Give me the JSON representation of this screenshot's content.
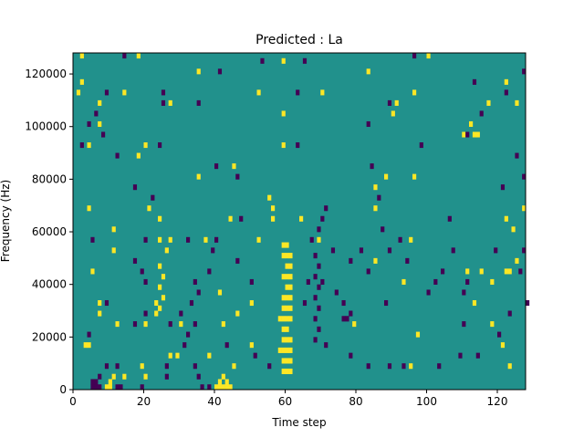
{
  "chart_data": {
    "type": "heatmap",
    "title": "Predicted : La",
    "xlabel": "Time step",
    "ylabel": "Frequency (Hz)",
    "xlim": [
      0,
      128
    ],
    "ylim": [
      0,
      128000
    ],
    "x_ticks": [
      0,
      20,
      40,
      60,
      80,
      100,
      120
    ],
    "y_ticks": [
      0,
      20000,
      40000,
      60000,
      80000,
      100000,
      120000
    ],
    "y_tick_labels": [
      "0",
      "20000",
      "40000",
      "60000",
      "80000",
      "100000",
      "120000"
    ],
    "grid": false,
    "legend": "none",
    "bin_height_hz": 2000,
    "value_levels": [
      -1,
      0,
      1
    ],
    "colors": {
      "-1": "#440154",
      "0": "#21918c",
      "1": "#fde725"
    },
    "background_value": 0,
    "cells": [
      {
        "t": 5,
        "f": 0,
        "v": -1
      },
      {
        "t": 6,
        "f": 0,
        "v": -1
      },
      {
        "t": 7,
        "f": 0,
        "v": -1
      },
      {
        "t": 9,
        "f": 0,
        "v": 1
      },
      {
        "t": 10,
        "f": 0,
        "v": 1
      },
      {
        "t": 12,
        "f": 0,
        "v": -1
      },
      {
        "t": 13,
        "f": 0,
        "v": -1
      },
      {
        "t": 19,
        "f": 0,
        "v": -1
      },
      {
        "t": 36,
        "f": 0,
        "v": -1
      },
      {
        "t": 38,
        "f": 0,
        "v": -1
      },
      {
        "t": 40,
        "f": 0,
        "v": 1
      },
      {
        "t": 41,
        "f": 0,
        "v": 1
      },
      {
        "t": 42,
        "f": 0,
        "v": 1
      },
      {
        "t": 43,
        "f": 0,
        "v": 1
      },
      {
        "t": 44,
        "f": 0,
        "v": 1
      },
      {
        "t": 5,
        "f": 2000,
        "v": -1
      },
      {
        "t": 6,
        "f": 2000,
        "v": -1
      },
      {
        "t": 10,
        "f": 2000,
        "v": 1
      },
      {
        "t": 41,
        "f": 2000,
        "v": 1
      },
      {
        "t": 43,
        "f": 2000,
        "v": 1
      },
      {
        "t": 7,
        "f": 4000,
        "v": -1
      },
      {
        "t": 11,
        "f": 4000,
        "v": 1
      },
      {
        "t": 14,
        "f": 4000,
        "v": 1
      },
      {
        "t": 20,
        "f": 4000,
        "v": 1
      },
      {
        "t": 26,
        "f": 4000,
        "v": -1
      },
      {
        "t": 35,
        "f": 4000,
        "v": -1
      },
      {
        "t": 42,
        "f": 4000,
        "v": 1
      },
      {
        "t": 9,
        "f": 8000,
        "v": -1
      },
      {
        "t": 12,
        "f": 8000,
        "v": -1
      },
      {
        "t": 19,
        "f": 8000,
        "v": 1
      },
      {
        "t": 26,
        "f": 8000,
        "v": -1
      },
      {
        "t": 34,
        "f": 8000,
        "v": -1
      },
      {
        "t": 45,
        "f": 8000,
        "v": 1
      },
      {
        "t": 55,
        "f": 8000,
        "v": -1
      },
      {
        "t": 83,
        "f": 8000,
        "v": -1
      },
      {
        "t": 89,
        "f": 8000,
        "v": -1
      },
      {
        "t": 93,
        "f": 8000,
        "v": -1
      },
      {
        "t": 95,
        "f": 8000,
        "v": 1
      },
      {
        "t": 103,
        "f": 8000,
        "v": -1
      },
      {
        "t": 123,
        "f": 8000,
        "v": 1
      },
      {
        "t": 27,
        "f": 12000,
        "v": 1
      },
      {
        "t": 29,
        "f": 12000,
        "v": 1
      },
      {
        "t": 38,
        "f": 12000,
        "v": 1
      },
      {
        "t": 51,
        "f": 12000,
        "v": -1
      },
      {
        "t": 78,
        "f": 12000,
        "v": -1
      },
      {
        "t": 109,
        "f": 12000,
        "v": -1
      },
      {
        "t": 114,
        "f": 12000,
        "v": -1
      },
      {
        "t": 3,
        "f": 16000,
        "v": 1
      },
      {
        "t": 4,
        "f": 16000,
        "v": 1
      },
      {
        "t": 31,
        "f": 16000,
        "v": -1
      },
      {
        "t": 43,
        "f": 16000,
        "v": -1
      },
      {
        "t": 50,
        "f": 16000,
        "v": 1
      },
      {
        "t": 71,
        "f": 16000,
        "v": -1
      },
      {
        "t": 121,
        "f": 16000,
        "v": 1
      },
      {
        "t": 4,
        "f": 20000,
        "v": -1
      },
      {
        "t": 32,
        "f": 20000,
        "v": -1
      },
      {
        "t": 97,
        "f": 20000,
        "v": 1
      },
      {
        "t": 120,
        "f": 20000,
        "v": -1
      },
      {
        "t": 12,
        "f": 24000,
        "v": 1
      },
      {
        "t": 17,
        "f": 24000,
        "v": -1
      },
      {
        "t": 20,
        "f": 24000,
        "v": 1
      },
      {
        "t": 27,
        "f": 24000,
        "v": -1
      },
      {
        "t": 30,
        "f": 24000,
        "v": 1
      },
      {
        "t": 34,
        "f": 24000,
        "v": -1
      },
      {
        "t": 42,
        "f": 24000,
        "v": 1
      },
      {
        "t": 79,
        "f": 24000,
        "v": 1
      },
      {
        "t": 110,
        "f": 24000,
        "v": -1
      },
      {
        "t": 118,
        "f": 24000,
        "v": 1
      },
      {
        "t": 7,
        "f": 28000,
        "v": 1
      },
      {
        "t": 20,
        "f": 28000,
        "v": -1
      },
      {
        "t": 23,
        "f": 28000,
        "v": 1
      },
      {
        "t": 30,
        "f": 28000,
        "v": -1
      },
      {
        "t": 46,
        "f": 28000,
        "v": 1
      },
      {
        "t": 123,
        "f": 28000,
        "v": -1
      },
      {
        "t": 7,
        "f": 32000,
        "v": 1
      },
      {
        "t": 9,
        "f": 32000,
        "v": -1
      },
      {
        "t": 23,
        "f": 32000,
        "v": 1
      },
      {
        "t": 33,
        "f": 32000,
        "v": -1
      },
      {
        "t": 50,
        "f": 32000,
        "v": 1
      },
      {
        "t": 65,
        "f": 32000,
        "v": -1
      },
      {
        "t": 76,
        "f": 32000,
        "v": -1
      },
      {
        "t": 88,
        "f": 32000,
        "v": -1
      },
      {
        "t": 113,
        "f": 32000,
        "v": 1
      },
      {
        "t": 128,
        "f": 32000,
        "v": -1
      },
      {
        "t": 35,
        "f": 36000,
        "v": -1
      },
      {
        "t": 41,
        "f": 36000,
        "v": 1
      },
      {
        "t": 74,
        "f": 36000,
        "v": -1
      },
      {
        "t": 100,
        "f": 36000,
        "v": -1
      },
      {
        "t": 110,
        "f": 36000,
        "v": -1
      },
      {
        "t": 20,
        "f": 40000,
        "v": -1
      },
      {
        "t": 34,
        "f": 40000,
        "v": -1
      },
      {
        "t": 50,
        "f": 40000,
        "v": -1
      },
      {
        "t": 66,
        "f": 40000,
        "v": -1
      },
      {
        "t": 70,
        "f": 40000,
        "v": -1
      },
      {
        "t": 93,
        "f": 40000,
        "v": 1
      },
      {
        "t": 102,
        "f": 40000,
        "v": -1
      },
      {
        "t": 111,
        "f": 40000,
        "v": -1
      },
      {
        "t": 118,
        "f": 40000,
        "v": 1
      },
      {
        "t": 5,
        "f": 44000,
        "v": 1
      },
      {
        "t": 19,
        "f": 44000,
        "v": -1
      },
      {
        "t": 38,
        "f": 44000,
        "v": -1
      },
      {
        "t": 83,
        "f": 44000,
        "v": -1
      },
      {
        "t": 104,
        "f": 44000,
        "v": -1
      },
      {
        "t": 111,
        "f": 44000,
        "v": 1
      },
      {
        "t": 115,
        "f": 44000,
        "v": 1
      },
      {
        "t": 122,
        "f": 44000,
        "v": 1
      },
      {
        "t": 123,
        "f": 44000,
        "v": 1
      },
      {
        "t": 126,
        "f": 44000,
        "v": -1
      },
      {
        "t": 17,
        "f": 48000,
        "v": -1
      },
      {
        "t": 46,
        "f": 48000,
        "v": -1
      },
      {
        "t": 78,
        "f": 48000,
        "v": -1
      },
      {
        "t": 85,
        "f": 48000,
        "v": 1
      },
      {
        "t": 94,
        "f": 48000,
        "v": -1
      },
      {
        "t": 125,
        "f": 48000,
        "v": 1
      },
      {
        "t": 11,
        "f": 52000,
        "v": 1
      },
      {
        "t": 26,
        "f": 52000,
        "v": 1
      },
      {
        "t": 39,
        "f": 52000,
        "v": -1
      },
      {
        "t": 73,
        "f": 52000,
        "v": -1
      },
      {
        "t": 81,
        "f": 52000,
        "v": -1
      },
      {
        "t": 89,
        "f": 52000,
        "v": -1
      },
      {
        "t": 107,
        "f": 52000,
        "v": -1
      },
      {
        "t": 119,
        "f": 52000,
        "v": -1
      },
      {
        "t": 127,
        "f": 52000,
        "v": -1
      },
      {
        "t": 5,
        "f": 56000,
        "v": -1
      },
      {
        "t": 20,
        "f": 56000,
        "v": -1
      },
      {
        "t": 24,
        "f": 56000,
        "v": 1
      },
      {
        "t": 27,
        "f": 56000,
        "v": 1
      },
      {
        "t": 32,
        "f": 56000,
        "v": -1
      },
      {
        "t": 37,
        "f": 56000,
        "v": 1
      },
      {
        "t": 40,
        "f": 56000,
        "v": -1
      },
      {
        "t": 52,
        "f": 56000,
        "v": 1
      },
      {
        "t": 67,
        "f": 56000,
        "v": -1
      },
      {
        "t": 69,
        "f": 56000,
        "v": 1
      },
      {
        "t": 92,
        "f": 56000,
        "v": -1
      },
      {
        "t": 95,
        "f": 56000,
        "v": 1
      },
      {
        "t": 11,
        "f": 60000,
        "v": 1
      },
      {
        "t": 69,
        "f": 60000,
        "v": -1
      },
      {
        "t": 87,
        "f": 60000,
        "v": -1
      },
      {
        "t": 124,
        "f": 60000,
        "v": 1
      },
      {
        "t": 24,
        "f": 64000,
        "v": 1
      },
      {
        "t": 44,
        "f": 64000,
        "v": 1
      },
      {
        "t": 47,
        "f": 64000,
        "v": -1
      },
      {
        "t": 56,
        "f": 64000,
        "v": 1
      },
      {
        "t": 64,
        "f": 64000,
        "v": 1
      },
      {
        "t": 70,
        "f": 64000,
        "v": -1
      },
      {
        "t": 106,
        "f": 64000,
        "v": -1
      },
      {
        "t": 122,
        "f": 64000,
        "v": 1
      },
      {
        "t": 4,
        "f": 68000,
        "v": 1
      },
      {
        "t": 21,
        "f": 68000,
        "v": 1
      },
      {
        "t": 56,
        "f": 68000,
        "v": 1
      },
      {
        "t": 71,
        "f": 68000,
        "v": -1
      },
      {
        "t": 85,
        "f": 68000,
        "v": 1
      },
      {
        "t": 127,
        "f": 68000,
        "v": 1
      },
      {
        "t": 22,
        "f": 72000,
        "v": -1
      },
      {
        "t": 55,
        "f": 72000,
        "v": 1
      },
      {
        "t": 86,
        "f": 72000,
        "v": -1
      },
      {
        "t": 17,
        "f": 76000,
        "v": -1
      },
      {
        "t": 85,
        "f": 76000,
        "v": 1
      },
      {
        "t": 121,
        "f": 76000,
        "v": -1
      },
      {
        "t": 35,
        "f": 80000,
        "v": 1
      },
      {
        "t": 46,
        "f": 80000,
        "v": -1
      },
      {
        "t": 88,
        "f": 80000,
        "v": 1
      },
      {
        "t": 96,
        "f": 80000,
        "v": 1
      },
      {
        "t": 127,
        "f": 80000,
        "v": -1
      },
      {
        "t": 40,
        "f": 84000,
        "v": -1
      },
      {
        "t": 45,
        "f": 84000,
        "v": 1
      },
      {
        "t": 84,
        "f": 84000,
        "v": -1
      },
      {
        "t": 12,
        "f": 88000,
        "v": -1
      },
      {
        "t": 18,
        "f": 88000,
        "v": 1
      },
      {
        "t": 125,
        "f": 88000,
        "v": -1
      },
      {
        "t": 2,
        "f": 92000,
        "v": -1
      },
      {
        "t": 4,
        "f": 92000,
        "v": 1
      },
      {
        "t": 20,
        "f": 92000,
        "v": 1
      },
      {
        "t": 24,
        "f": 92000,
        "v": -1
      },
      {
        "t": 59,
        "f": 92000,
        "v": 1
      },
      {
        "t": 63,
        "f": 92000,
        "v": -1
      },
      {
        "t": 98,
        "f": 92000,
        "v": -1
      },
      {
        "t": 8,
        "f": 96000,
        "v": -1
      },
      {
        "t": 110,
        "f": 96000,
        "v": 1
      },
      {
        "t": 111,
        "f": 96000,
        "v": -1
      },
      {
        "t": 113,
        "f": 96000,
        "v": 1
      },
      {
        "t": 114,
        "f": 96000,
        "v": 1
      },
      {
        "t": 4,
        "f": 100000,
        "v": -1
      },
      {
        "t": 7,
        "f": 100000,
        "v": 1
      },
      {
        "t": 83,
        "f": 100000,
        "v": -1
      },
      {
        "t": 112,
        "f": 100000,
        "v": 1
      },
      {
        "t": 6,
        "f": 104000,
        "v": -1
      },
      {
        "t": 59,
        "f": 104000,
        "v": 1
      },
      {
        "t": 90,
        "f": 104000,
        "v": 1
      },
      {
        "t": 115,
        "f": 104000,
        "v": -1
      },
      {
        "t": 7,
        "f": 108000,
        "v": 1
      },
      {
        "t": 25,
        "f": 108000,
        "v": -1
      },
      {
        "t": 27,
        "f": 108000,
        "v": 1
      },
      {
        "t": 35,
        "f": 108000,
        "v": -1
      },
      {
        "t": 89,
        "f": 108000,
        "v": -1
      },
      {
        "t": 91,
        "f": 108000,
        "v": 1
      },
      {
        "t": 117,
        "f": 108000,
        "v": 1
      },
      {
        "t": 125,
        "f": 108000,
        "v": 1
      },
      {
        "t": 1,
        "f": 112000,
        "v": 1
      },
      {
        "t": 9,
        "f": 112000,
        "v": -1
      },
      {
        "t": 14,
        "f": 112000,
        "v": 1
      },
      {
        "t": 25,
        "f": 112000,
        "v": -1
      },
      {
        "t": 52,
        "f": 112000,
        "v": 1
      },
      {
        "t": 63,
        "f": 112000,
        "v": -1
      },
      {
        "t": 70,
        "f": 112000,
        "v": 1
      },
      {
        "t": 96,
        "f": 112000,
        "v": 1
      },
      {
        "t": 122,
        "f": 112000,
        "v": -1
      },
      {
        "t": 2,
        "f": 116000,
        "v": 1
      },
      {
        "t": 113,
        "f": 116000,
        "v": -1
      },
      {
        "t": 122,
        "f": 116000,
        "v": 1
      },
      {
        "t": 35,
        "f": 120000,
        "v": 1
      },
      {
        "t": 41,
        "f": 120000,
        "v": -1
      },
      {
        "t": 83,
        "f": 120000,
        "v": 1
      },
      {
        "t": 127,
        "f": 120000,
        "v": -1
      },
      {
        "t": 53,
        "f": 124000,
        "v": -1
      },
      {
        "t": 59,
        "f": 124000,
        "v": 1
      },
      {
        "t": 65,
        "f": 124000,
        "v": -1
      },
      {
        "t": 2,
        "f": 126000,
        "v": 1
      },
      {
        "t": 14,
        "f": 126000,
        "v": -1
      },
      {
        "t": 18,
        "f": 126000,
        "v": 1
      },
      {
        "t": 96,
        "f": 126000,
        "v": -1
      },
      {
        "t": 100,
        "f": 126000,
        "v": 1
      },
      {
        "t": 59,
        "f": 6000,
        "v": 1
      },
      {
        "t": 60,
        "f": 6000,
        "v": 1
      },
      {
        "t": 61,
        "f": 6000,
        "v": 1
      },
      {
        "t": 59,
        "f": 10000,
        "v": 1
      },
      {
        "t": 60,
        "f": 10000,
        "v": 1
      },
      {
        "t": 61,
        "f": 10000,
        "v": 1
      },
      {
        "t": 58,
        "f": 14000,
        "v": 1
      },
      {
        "t": 59,
        "f": 14000,
        "v": 1
      },
      {
        "t": 60,
        "f": 14000,
        "v": 1
      },
      {
        "t": 61,
        "f": 14000,
        "v": 1
      },
      {
        "t": 59,
        "f": 18000,
        "v": 1
      },
      {
        "t": 60,
        "f": 18000,
        "v": 1
      },
      {
        "t": 61,
        "f": 18000,
        "v": 1
      },
      {
        "t": 59,
        "f": 22000,
        "v": 1
      },
      {
        "t": 60,
        "f": 22000,
        "v": 1
      },
      {
        "t": 58,
        "f": 26000,
        "v": 1
      },
      {
        "t": 59,
        "f": 26000,
        "v": 1
      },
      {
        "t": 60,
        "f": 26000,
        "v": 1
      },
      {
        "t": 61,
        "f": 26000,
        "v": 1
      },
      {
        "t": 59,
        "f": 30000,
        "v": 1
      },
      {
        "t": 60,
        "f": 30000,
        "v": 1
      },
      {
        "t": 61,
        "f": 30000,
        "v": 1
      },
      {
        "t": 59,
        "f": 34000,
        "v": 1
      },
      {
        "t": 60,
        "f": 34000,
        "v": 1
      },
      {
        "t": 61,
        "f": 34000,
        "v": 1
      },
      {
        "t": 60,
        "f": 38000,
        "v": 1
      },
      {
        "t": 61,
        "f": 38000,
        "v": 1
      },
      {
        "t": 59,
        "f": 42000,
        "v": 1
      },
      {
        "t": 60,
        "f": 42000,
        "v": 1
      },
      {
        "t": 61,
        "f": 42000,
        "v": 1
      },
      {
        "t": 60,
        "f": 46000,
        "v": 1
      },
      {
        "t": 61,
        "f": 46000,
        "v": 1
      },
      {
        "t": 59,
        "f": 50000,
        "v": 1
      },
      {
        "t": 60,
        "f": 50000,
        "v": 1
      },
      {
        "t": 61,
        "f": 50000,
        "v": 1
      },
      {
        "t": 59,
        "f": 54000,
        "v": 1
      },
      {
        "t": 60,
        "f": 54000,
        "v": 1
      },
      {
        "t": 68,
        "f": 18000,
        "v": -1
      },
      {
        "t": 69,
        "f": 22000,
        "v": -1
      },
      {
        "t": 68,
        "f": 26000,
        "v": -1
      },
      {
        "t": 69,
        "f": 30000,
        "v": -1
      },
      {
        "t": 68,
        "f": 34000,
        "v": -1
      },
      {
        "t": 69,
        "f": 38000,
        "v": -1
      },
      {
        "t": 68,
        "f": 42000,
        "v": -1
      },
      {
        "t": 69,
        "f": 46000,
        "v": -1
      },
      {
        "t": 68,
        "f": 50000,
        "v": -1
      },
      {
        "t": 76,
        "f": 26000,
        "v": -1
      },
      {
        "t": 77,
        "f": 26000,
        "v": -1
      },
      {
        "t": 78,
        "f": 28000,
        "v": -1
      },
      {
        "t": 24,
        "f": 30000,
        "v": 1
      },
      {
        "t": 25,
        "f": 34000,
        "v": 1
      },
      {
        "t": 24,
        "f": 38000,
        "v": 1
      },
      {
        "t": 25,
        "f": 42000,
        "v": 1
      },
      {
        "t": 24,
        "f": 46000,
        "v": 1
      }
    ]
  }
}
